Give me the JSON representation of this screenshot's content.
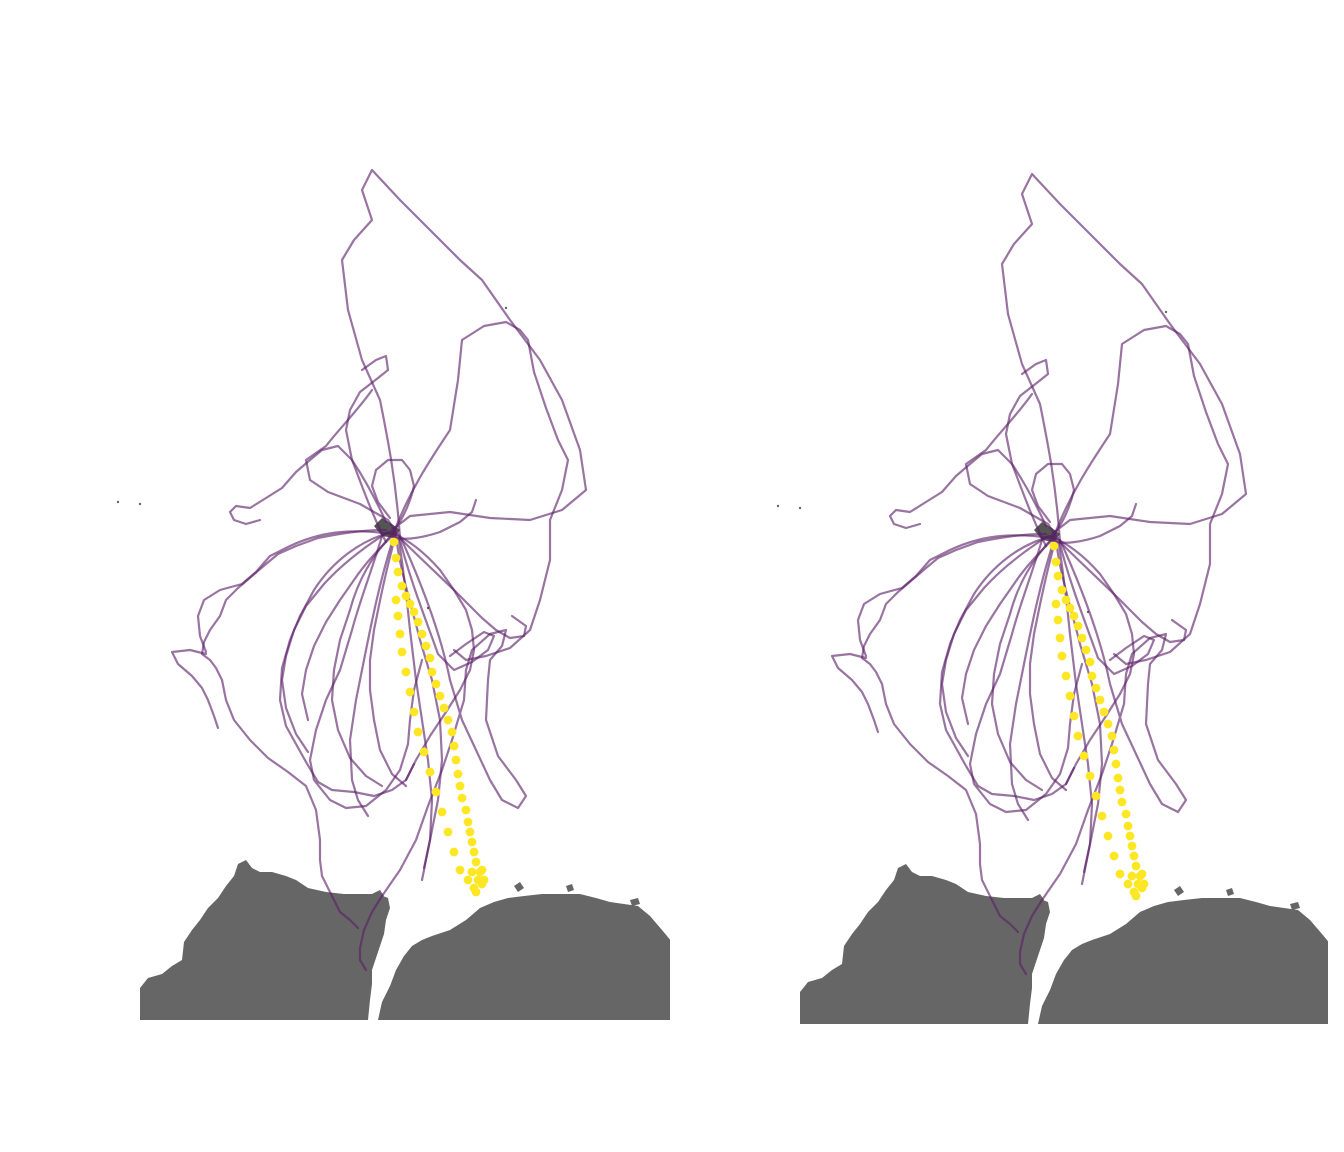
{
  "map": {
    "colors": {
      "track": "#5b1f68",
      "highlight": "#fde725",
      "land": "#666666",
      "background": "#ffffff"
    },
    "panels": [
      {
        "id": "left",
        "variant": "original"
      },
      {
        "id": "right",
        "variant": "alternate"
      }
    ]
  }
}
